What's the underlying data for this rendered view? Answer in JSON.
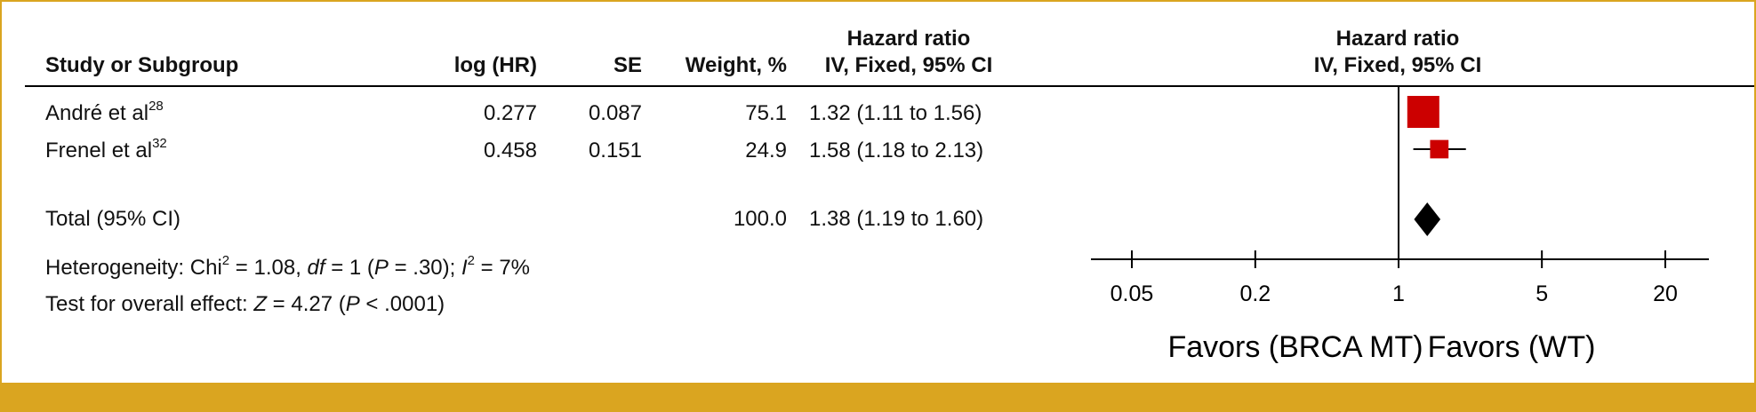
{
  "columns": {
    "study": "Study or Subgroup",
    "log_hr": "log (HR)",
    "se": "SE",
    "weight": "Weight, %",
    "hr_line1": "Hazard ratio",
    "hr_line2": "IV, Fixed, 95% CI"
  },
  "plot_header": {
    "line1": "Hazard ratio",
    "line2": "IV, Fixed, 95% CI"
  },
  "rows": [
    {
      "study": "André et al",
      "ref": "28",
      "log_hr": "0.277",
      "se": "0.087",
      "weight": "75.1",
      "hr_ci": "1.32 (1.11 to 1.56)"
    },
    {
      "study": "Frenel et al",
      "ref": "32",
      "log_hr": "0.458",
      "se": "0.151",
      "weight": "24.9",
      "hr_ci": "1.58 (1.18 to 2.13)"
    }
  ],
  "total": {
    "label": "Total (95% CI)",
    "weight": "100.0",
    "hr_ci": "1.38 (1.19 to 1.60)"
  },
  "footnotes": {
    "het_prefix": "Heterogeneity: Chi",
    "het_sup1": "2",
    "het_mid1": " = 1.08, ",
    "het_df": "df",
    "het_mid2": " = 1 (",
    "het_p": "P",
    "het_mid3": " = .30); ",
    "het_i": "I",
    "het_sup2": "2",
    "het_end": " = 7%",
    "eff_prefix": "Test for overall effect: ",
    "eff_z": "Z",
    "eff_mid": " = 4.27 (",
    "eff_p": "P",
    "eff_end": " < .0001)"
  },
  "colors": {
    "accent": "#DAA520",
    "marker": "#CC0000",
    "diamond": "#000000",
    "text": "#111111"
  },
  "chart_data": {
    "type": "forest",
    "x_scale": "log",
    "xlim": [
      0.03,
      40
    ],
    "x_ticks": [
      0.05,
      0.2,
      1,
      5,
      20
    ],
    "x_tick_labels": [
      "0.05",
      "0.2",
      "1",
      "5",
      "20"
    ],
    "reference_line": 1,
    "left_label": "Favors (BRCA MT)",
    "right_label": "Favors (WT)",
    "studies": [
      {
        "name": "André et al",
        "hr": 1.32,
        "lower": 1.11,
        "upper": 1.56,
        "weight": 75.1
      },
      {
        "name": "Frenel et al",
        "hr": 1.58,
        "lower": 1.18,
        "upper": 2.13,
        "weight": 24.9
      }
    ],
    "pooled": {
      "name": "Total (95% CI)",
      "hr": 1.38,
      "lower": 1.19,
      "upper": 1.6
    }
  }
}
